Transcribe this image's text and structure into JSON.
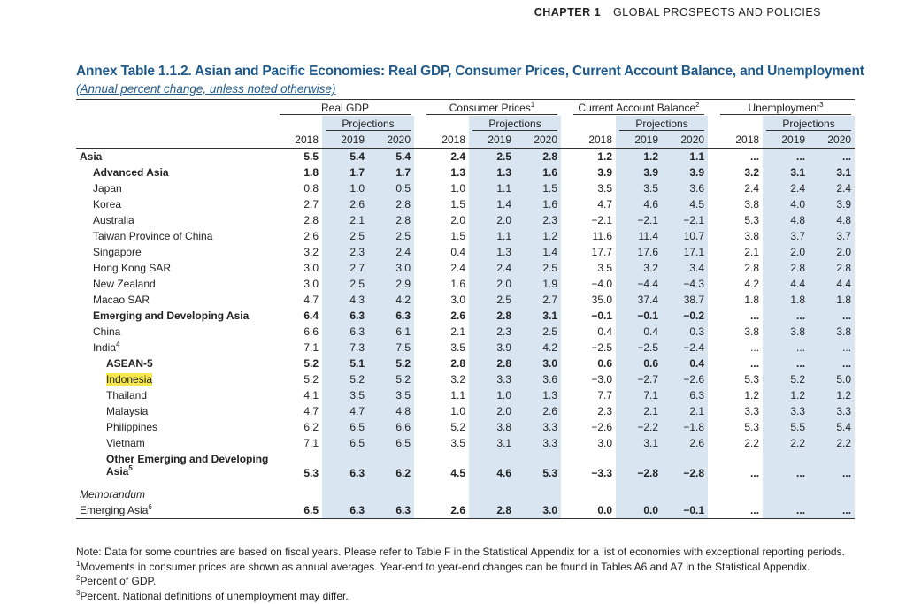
{
  "header": {
    "chapter": "CHAPTER 1",
    "section": "GLOBAL PROSPECTS AND POLICIES"
  },
  "table": {
    "title": "Annex Table 1.1.2. Asian and Pacific Economies: Real GDP, Consumer Prices, Current Account Balance, and Unemployment",
    "subtitle": "(Annual percent change, unless noted otherwise)",
    "groups": [
      {
        "name": "Real GDP"
      },
      {
        "name": "Consumer Prices",
        "sup": "1"
      },
      {
        "name": "Current Account Balance",
        "sup": "2"
      },
      {
        "name": "Unemployment",
        "sup": "3"
      }
    ],
    "projections": "Projections",
    "years": [
      "2018",
      "2019",
      "2020"
    ],
    "rows": [
      {
        "label": "Asia",
        "values": [
          "5.5",
          "5.4",
          "5.4",
          "2.4",
          "2.5",
          "2.8",
          "1.2",
          "1.2",
          "1.1",
          "...",
          "...",
          "..."
        ]
      },
      {
        "label": "Advanced Asia",
        "values": [
          "1.8",
          "1.7",
          "1.7",
          "1.3",
          "1.3",
          "1.6",
          "3.9",
          "3.9",
          "3.9",
          "3.2",
          "3.1",
          "3.1"
        ]
      },
      {
        "label": "Japan",
        "values": [
          "0.8",
          "1.0",
          "0.5",
          "1.0",
          "1.1",
          "1.5",
          "3.5",
          "3.5",
          "3.6",
          "2.4",
          "2.4",
          "2.4"
        ]
      },
      {
        "label": "Korea",
        "values": [
          "2.7",
          "2.6",
          "2.8",
          "1.5",
          "1.4",
          "1.6",
          "4.7",
          "4.6",
          "4.5",
          "3.8",
          "4.0",
          "3.9"
        ]
      },
      {
        "label": "Australia",
        "values": [
          "2.8",
          "2.1",
          "2.8",
          "2.0",
          "2.0",
          "2.3",
          "−2.1",
          "−2.1",
          "−2.1",
          "5.3",
          "4.8",
          "4.8"
        ]
      },
      {
        "label": "Taiwan Province of China",
        "values": [
          "2.6",
          "2.5",
          "2.5",
          "1.5",
          "1.1",
          "1.2",
          "11.6",
          "11.4",
          "10.7",
          "3.8",
          "3.7",
          "3.7"
        ]
      },
      {
        "label": "Singapore",
        "values": [
          "3.2",
          "2.3",
          "2.4",
          "0.4",
          "1.3",
          "1.4",
          "17.7",
          "17.6",
          "17.1",
          "2.1",
          "2.0",
          "2.0"
        ]
      },
      {
        "label": "Hong Kong SAR",
        "values": [
          "3.0",
          "2.7",
          "3.0",
          "2.4",
          "2.4",
          "2.5",
          "3.5",
          "3.2",
          "3.4",
          "2.8",
          "2.8",
          "2.8"
        ]
      },
      {
        "label": "New Zealand",
        "values": [
          "3.0",
          "2.5",
          "2.9",
          "1.6",
          "2.0",
          "1.9",
          "−4.0",
          "−4.4",
          "−4.3",
          "4.2",
          "4.4",
          "4.4"
        ]
      },
      {
        "label": "Macao SAR",
        "values": [
          "4.7",
          "4.3",
          "4.2",
          "3.0",
          "2.5",
          "2.7",
          "35.0",
          "37.4",
          "38.7",
          "1.8",
          "1.8",
          "1.8"
        ]
      },
      {
        "label": "Emerging and Developing Asia",
        "values": [
          "6.4",
          "6.3",
          "6.3",
          "2.6",
          "2.8",
          "3.1",
          "−0.1",
          "−0.1",
          "−0.2",
          "...",
          "...",
          "..."
        ]
      },
      {
        "label": "China",
        "values": [
          "6.6",
          "6.3",
          "6.1",
          "2.1",
          "2.3",
          "2.5",
          "0.4",
          "0.4",
          "0.3",
          "3.8",
          "3.8",
          "3.8"
        ]
      },
      {
        "label": "India",
        "sup": "4",
        "values": [
          "7.1",
          "7.3",
          "7.5",
          "3.5",
          "3.9",
          "4.2",
          "−2.5",
          "−2.5",
          "−2.4",
          "...",
          "...",
          "..."
        ]
      },
      {
        "label": "ASEAN-5",
        "values": [
          "5.2",
          "5.1",
          "5.2",
          "2.8",
          "2.8",
          "3.0",
          "0.6",
          "0.6",
          "0.4",
          "...",
          "...",
          "..."
        ]
      },
      {
        "label": "Indonesia",
        "values": [
          "5.2",
          "5.2",
          "5.2",
          "3.2",
          "3.3",
          "3.6",
          "−3.0",
          "−2.7",
          "−2.6",
          "5.3",
          "5.2",
          "5.0"
        ]
      },
      {
        "label": "Thailand",
        "values": [
          "4.1",
          "3.5",
          "3.5",
          "1.1",
          "1.0",
          "1.3",
          "7.7",
          "7.1",
          "6.3",
          "1.2",
          "1.2",
          "1.2"
        ]
      },
      {
        "label": "Malaysia",
        "values": [
          "4.7",
          "4.7",
          "4.8",
          "1.0",
          "2.0",
          "2.6",
          "2.3",
          "2.1",
          "2.1",
          "3.3",
          "3.3",
          "3.3"
        ]
      },
      {
        "label": "Philippines",
        "values": [
          "6.2",
          "6.5",
          "6.6",
          "5.2",
          "3.8",
          "3.3",
          "−2.6",
          "−2.2",
          "−1.8",
          "5.3",
          "5.5",
          "5.4"
        ]
      },
      {
        "label": "Vietnam",
        "values": [
          "7.1",
          "6.5",
          "6.5",
          "3.5",
          "3.1",
          "3.3",
          "3.0",
          "3.1",
          "2.6",
          "2.2",
          "2.2",
          "2.2"
        ]
      },
      {
        "label": "Other Emerging and Developing Asia",
        "sup": "5",
        "values": [
          "5.3",
          "6.3",
          "6.2",
          "4.5",
          "4.6",
          "5.3",
          "−3.3",
          "−2.8",
          "−2.8",
          "...",
          "...",
          "..."
        ]
      },
      {
        "label": "Memorandum"
      },
      {
        "label": "Emerging Asia",
        "sup": "6",
        "values": [
          "6.5",
          "6.3",
          "6.3",
          "2.6",
          "2.8",
          "3.0",
          "0.0",
          "0.0",
          "−0.1",
          "...",
          "...",
          "..."
        ]
      }
    ]
  },
  "notes": [
    {
      "text": "Note: Data for some countries are based on fiscal years. Please refer to Table F in the Statistical Appendix for a list of economies with exceptional reporting periods."
    },
    {
      "sup": "1",
      "text": "Movements in consumer prices are shown as annual averages. Year-end to year-end changes can be found in Tables A6 and A7 in the Statistical Appendix."
    },
    {
      "sup": "2",
      "text": "Percent of GDP."
    },
    {
      "sup": "3",
      "text": "Percent. National definitions of unemployment may differ."
    }
  ]
}
